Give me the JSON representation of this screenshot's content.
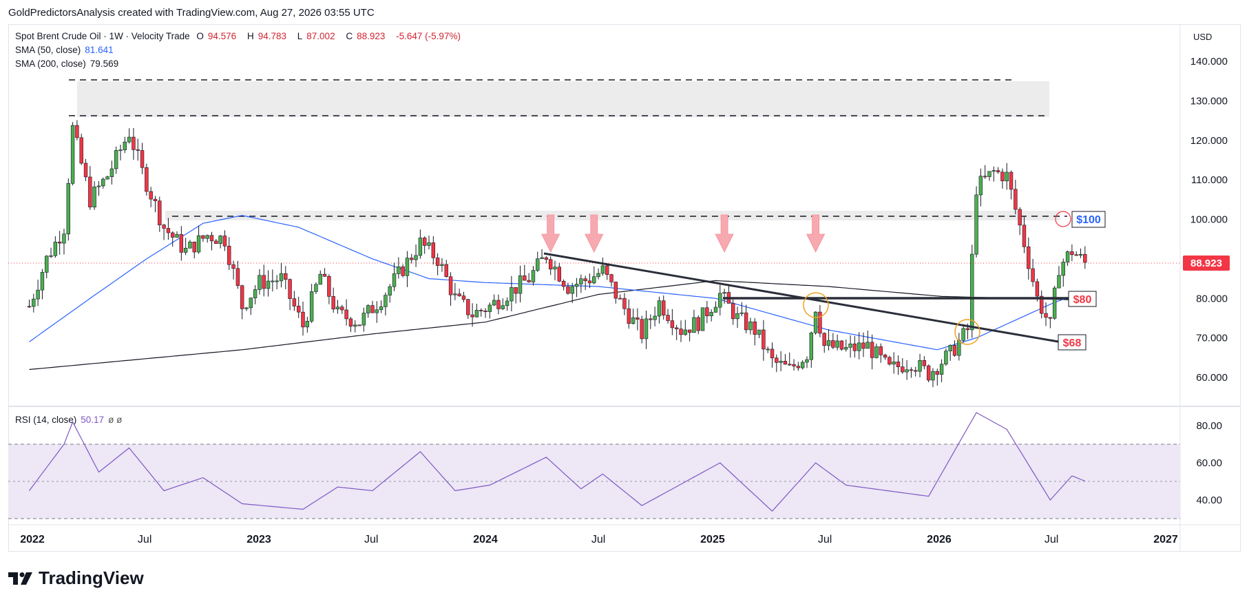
{
  "header": {
    "attribution": "GoldPredictorsAnalysis created with TradingView.com, Aug 27, 2026 03:55 UTC"
  },
  "legend": {
    "symbol": "Spot Brent Crude Oil · 1W · Velocity Trade",
    "open_label": "O",
    "open": "94.576",
    "high_label": "H",
    "high": "94.783",
    "low_label": "L",
    "low": "87.002",
    "close_label": "C",
    "close": "88.923",
    "change": "-5.647 (-5.97%)",
    "sma50_label": "SMA (50, close)",
    "sma50_value": "81.641",
    "sma200_label": "SMA (200, close)",
    "sma200_value": "79.569",
    "rsi_label": "RSI (14, close)",
    "rsi_value": "50.17",
    "rsi_extra": "ø ø"
  },
  "currency": "USD",
  "last_price": "88.923",
  "annotations": {
    "label_100": "$100",
    "label_80": "$80",
    "label_68": "$68"
  },
  "brand": {
    "name": "TradingView"
  },
  "colors": {
    "up": "#4caf50",
    "down": "#f23645",
    "sma50": "#2962ff",
    "sma200": "#131722",
    "rsi": "#7e57c2",
    "rsi_bg": "#ede7f6",
    "price_tag": "#f23645",
    "arrow": "#f7a9b0",
    "zone": "#ececec"
  },
  "chart_data": {
    "type": "candlestick",
    "timeframe": "1W",
    "currency": "USD",
    "x_tick_labels": [
      "2022",
      "Jul",
      "2023",
      "Jul",
      "2024",
      "Jul",
      "2025",
      "Jul",
      "2026",
      "Jul",
      "2027"
    ],
    "y_tick_labels": [
      "140.000",
      "130.000",
      "120.000",
      "110.000",
      "100.000",
      "90.000",
      "80.000",
      "70.000",
      "60.000"
    ],
    "y_range": [
      55,
      143
    ],
    "close_series": [
      {
        "date": "2021-12-27",
        "close": 78
      },
      {
        "date": "2022-01-24",
        "close": 90
      },
      {
        "date": "2022-02-21",
        "close": 98
      },
      {
        "date": "2022-03-07",
        "close": 123
      },
      {
        "date": "2022-04-04",
        "close": 105
      },
      {
        "date": "2022-05-02",
        "close": 111
      },
      {
        "date": "2022-06-06",
        "close": 122
      },
      {
        "date": "2022-06-27",
        "close": 112
      },
      {
        "date": "2022-08-01",
        "close": 98
      },
      {
        "date": "2022-09-05",
        "close": 92
      },
      {
        "date": "2022-10-10",
        "close": 96
      },
      {
        "date": "2022-11-07",
        "close": 95
      },
      {
        "date": "2022-12-05",
        "close": 78
      },
      {
        "date": "2023-01-02",
        "close": 84
      },
      {
        "date": "2023-02-06",
        "close": 85
      },
      {
        "date": "2023-03-13",
        "close": 73
      },
      {
        "date": "2023-04-10",
        "close": 86
      },
      {
        "date": "2023-05-08",
        "close": 76
      },
      {
        "date": "2023-06-12",
        "close": 74
      },
      {
        "date": "2023-07-17",
        "close": 80
      },
      {
        "date": "2023-08-14",
        "close": 86
      },
      {
        "date": "2023-09-18",
        "close": 94
      },
      {
        "date": "2023-10-16",
        "close": 90
      },
      {
        "date": "2023-11-13",
        "close": 80
      },
      {
        "date": "2023-12-11",
        "close": 76
      },
      {
        "date": "2024-01-08",
        "close": 78
      },
      {
        "date": "2024-02-12",
        "close": 82
      },
      {
        "date": "2024-03-11",
        "close": 85
      },
      {
        "date": "2024-04-08",
        "close": 91
      },
      {
        "date": "2024-05-13",
        "close": 83
      },
      {
        "date": "2024-06-17",
        "close": 85
      },
      {
        "date": "2024-07-08",
        "close": 87
      },
      {
        "date": "2024-08-05",
        "close": 79
      },
      {
        "date": "2024-09-09",
        "close": 71
      },
      {
        "date": "2024-10-07",
        "close": 79
      },
      {
        "date": "2024-11-11",
        "close": 72
      },
      {
        "date": "2024-12-09",
        "close": 74
      },
      {
        "date": "2025-01-13",
        "close": 81
      },
      {
        "date": "2025-02-10",
        "close": 75
      },
      {
        "date": "2025-03-10",
        "close": 72
      },
      {
        "date": "2025-04-07",
        "close": 64
      },
      {
        "date": "2025-05-05",
        "close": 62
      },
      {
        "date": "2025-06-02",
        "close": 66
      },
      {
        "date": "2025-06-16",
        "close": 78
      },
      {
        "date": "2025-06-30",
        "close": 68
      },
      {
        "date": "2025-08-04",
        "close": 67
      },
      {
        "date": "2025-09-08",
        "close": 68
      },
      {
        "date": "2025-10-13",
        "close": 62
      },
      {
        "date": "2025-11-17",
        "close": 64
      },
      {
        "date": "2025-12-15",
        "close": 61
      },
      {
        "date": "2026-01-19",
        "close": 66
      },
      {
        "date": "2026-02-16",
        "close": 72
      },
      {
        "date": "2026-03-02",
        "close": 108
      },
      {
        "date": "2026-03-30",
        "close": 112
      },
      {
        "date": "2026-04-20",
        "close": 111
      },
      {
        "date": "2026-05-18",
        "close": 94
      },
      {
        "date": "2026-06-08",
        "close": 80
      },
      {
        "date": "2026-06-29",
        "close": 73
      },
      {
        "date": "2026-07-13",
        "close": 88
      },
      {
        "date": "2026-08-03",
        "close": 92
      },
      {
        "date": "2026-08-24",
        "close": 88.923
      }
    ],
    "indicators": [
      {
        "name": "SMA (50, close)",
        "last": 81.641,
        "values": [
          {
            "date": "2021-12-27",
            "value": 69
          },
          {
            "date": "2022-04-04",
            "value": 80
          },
          {
            "date": "2022-07-04",
            "value": 90
          },
          {
            "date": "2022-10-03",
            "value": 99
          },
          {
            "date": "2022-12-05",
            "value": 101
          },
          {
            "date": "2023-03-06",
            "value": 98
          },
          {
            "date": "2023-07-03",
            "value": 90
          },
          {
            "date": "2023-10-02",
            "value": 85
          },
          {
            "date": "2024-01-01",
            "value": 84
          },
          {
            "date": "2024-07-01",
            "value": 83
          },
          {
            "date": "2025-01-06",
            "value": 80
          },
          {
            "date": "2025-07-07",
            "value": 72
          },
          {
            "date": "2025-12-29",
            "value": 67
          },
          {
            "date": "2026-03-02",
            "value": 70
          },
          {
            "date": "2026-07-06",
            "value": 79
          },
          {
            "date": "2026-08-24",
            "value": 81.641
          }
        ]
      },
      {
        "name": "SMA (200, close)",
        "last": 79.569,
        "values": [
          {
            "date": "2021-12-27",
            "value": 62
          },
          {
            "date": "2022-12-05",
            "value": 67
          },
          {
            "date": "2023-07-03",
            "value": 71
          },
          {
            "date": "2024-01-01",
            "value": 74
          },
          {
            "date": "2024-07-01",
            "value": 81
          },
          {
            "date": "2025-01-06",
            "value": 84.5
          },
          {
            "date": "2025-07-07",
            "value": 83
          },
          {
            "date": "2026-01-05",
            "value": 80.5
          },
          {
            "date": "2026-08-24",
            "value": 79.569
          }
        ]
      }
    ],
    "rsi": {
      "name": "RSI (14, close)",
      "last": 50.17,
      "y_tick_labels": [
        "80.00",
        "60.00",
        "40.00"
      ],
      "overbought": 70,
      "oversold": 30,
      "mid": 50,
      "values": [
        {
          "date": "2021-12-27",
          "value": 45
        },
        {
          "date": "2022-02-21",
          "value": 70
        },
        {
          "date": "2022-03-07",
          "value": 82
        },
        {
          "date": "2022-04-18",
          "value": 55
        },
        {
          "date": "2022-06-06",
          "value": 68
        },
        {
          "date": "2022-08-01",
          "value": 45
        },
        {
          "date": "2022-10-03",
          "value": 52
        },
        {
          "date": "2022-12-05",
          "value": 38
        },
        {
          "date": "2023-03-13",
          "value": 35
        },
        {
          "date": "2023-05-08",
          "value": 47
        },
        {
          "date": "2023-07-03",
          "value": 45
        },
        {
          "date": "2023-09-18",
          "value": 66
        },
        {
          "date": "2023-11-13",
          "value": 45
        },
        {
          "date": "2024-01-08",
          "value": 48
        },
        {
          "date": "2024-04-08",
          "value": 63
        },
        {
          "date": "2024-06-03",
          "value": 46
        },
        {
          "date": "2024-07-08",
          "value": 54
        },
        {
          "date": "2024-09-09",
          "value": 37
        },
        {
          "date": "2025-01-13",
          "value": 60
        },
        {
          "date": "2025-04-07",
          "value": 34
        },
        {
          "date": "2025-06-16",
          "value": 60
        },
        {
          "date": "2025-08-04",
          "value": 48
        },
        {
          "date": "2025-12-15",
          "value": 42
        },
        {
          "date": "2026-03-02",
          "value": 87
        },
        {
          "date": "2026-04-20",
          "value": 78
        },
        {
          "date": "2026-06-29",
          "value": 40
        },
        {
          "date": "2026-08-03",
          "value": 53
        },
        {
          "date": "2026-08-24",
          "value": 50.17
        }
      ]
    }
  }
}
